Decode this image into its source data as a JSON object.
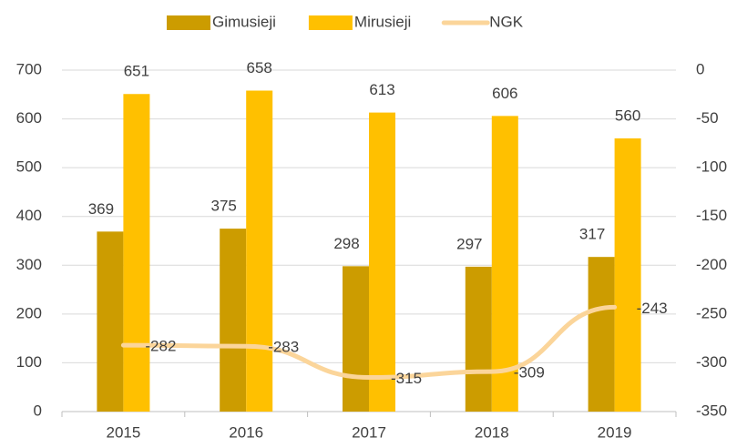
{
  "chart_data": {
    "type": "bar-line",
    "categories": [
      "2015",
      "2016",
      "2017",
      "2018",
      "2019"
    ],
    "series": [
      {
        "name": "Gimusieji",
        "color": "#cc9c00",
        "type": "bar",
        "values": [
          369,
          375,
          298,
          297,
          317
        ]
      },
      {
        "name": "Mirusieji",
        "color": "#ffc000",
        "type": "bar",
        "values": [
          651,
          658,
          613,
          606,
          560
        ]
      },
      {
        "name": "NGK",
        "color": "#fbd59a",
        "type": "line",
        "axis": "y2",
        "values": [
          -282,
          -283,
          -315,
          -309,
          -243
        ]
      }
    ],
    "ylim": [
      0,
      700
    ],
    "yticks": [
      0,
      100,
      200,
      300,
      400,
      500,
      600,
      700
    ],
    "y2lim": [
      -350,
      0
    ],
    "y2ticks": [
      -350,
      -300,
      -250,
      -200,
      -150,
      -100,
      -50,
      0
    ],
    "grid": true,
    "legend": "top"
  }
}
